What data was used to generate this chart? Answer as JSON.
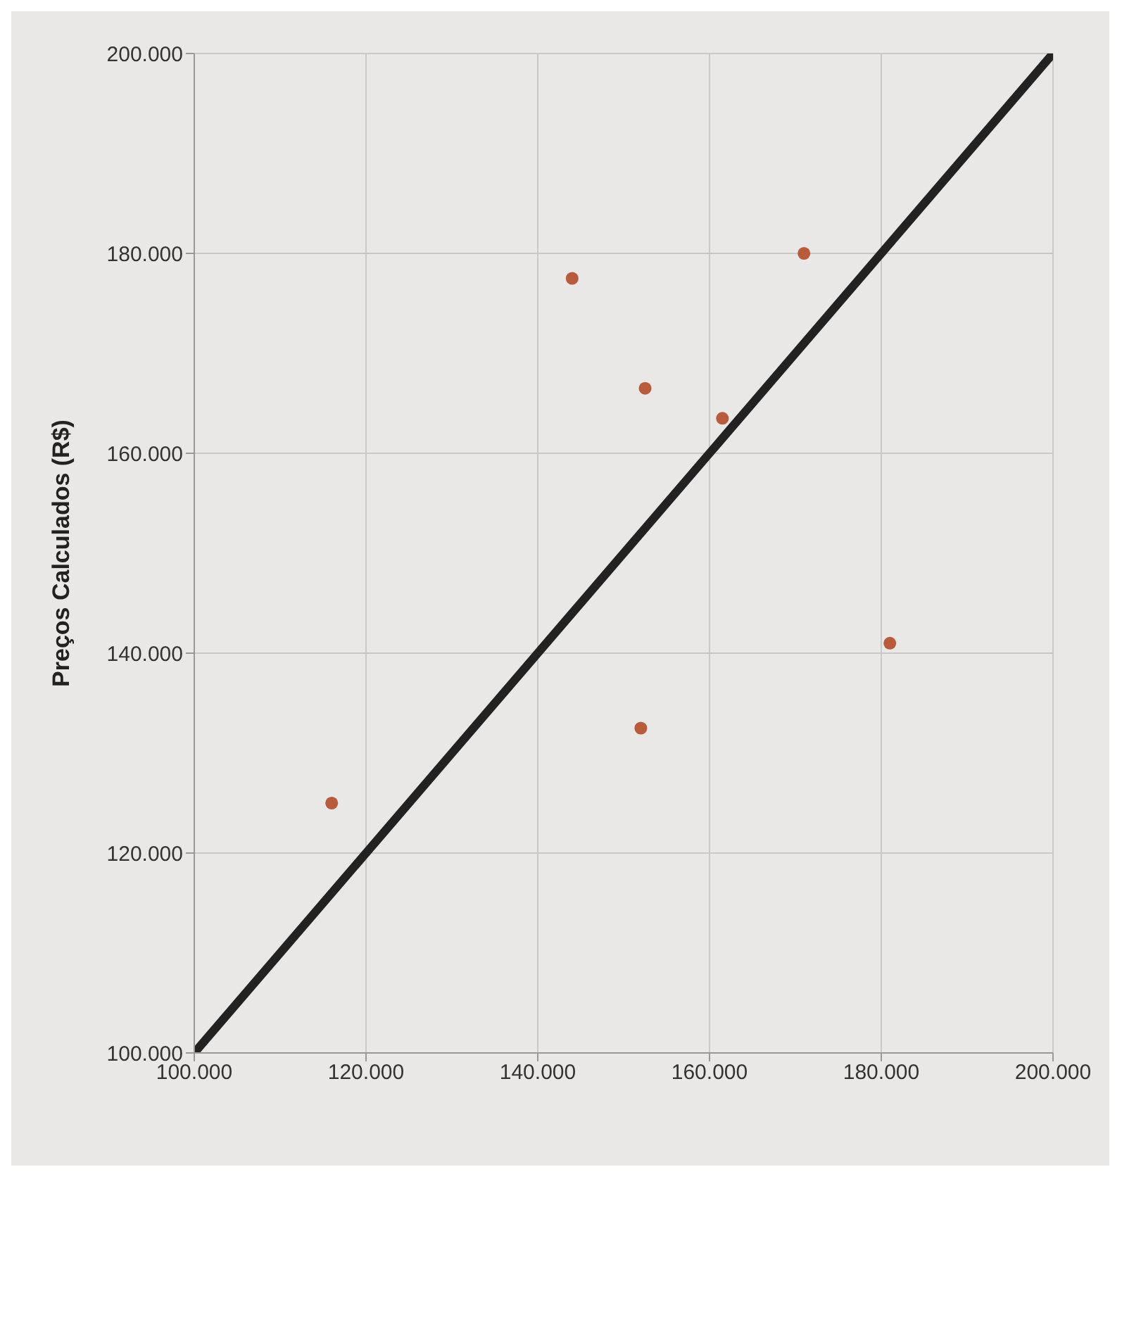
{
  "chart_data": {
    "type": "scatter",
    "ylabel": "Preços Calculados (R$)",
    "xlim": [
      100000,
      200000
    ],
    "ylim": [
      100000,
      200000
    ],
    "xticks": [
      {
        "value": 100000,
        "label": "100.000"
      },
      {
        "value": 120000,
        "label": "120.000"
      },
      {
        "value": 140000,
        "label": "140.000"
      },
      {
        "value": 160000,
        "label": "160.000"
      },
      {
        "value": 180000,
        "label": "180.000"
      },
      {
        "value": 200000,
        "label": "200.000"
      }
    ],
    "yticks": [
      {
        "value": 100000,
        "label": "100.000"
      },
      {
        "value": 120000,
        "label": "120.000"
      },
      {
        "value": 140000,
        "label": "140.000"
      },
      {
        "value": 160000,
        "label": "160.000"
      },
      {
        "value": 180000,
        "label": "180.000"
      },
      {
        "value": 200000,
        "label": "200.000"
      }
    ],
    "grid": true,
    "series": [
      {
        "marker": "circle",
        "color": "#b85a3c",
        "x": [
          171000,
          181000,
          161500,
          144000,
          152500,
          152000,
          116000
        ],
        "values": [
          180000,
          141000,
          163500,
          177500,
          166500,
          132500,
          125000
        ]
      },
      {
        "type": "line",
        "color": "#222222",
        "line_style": "solid",
        "x": [
          100000,
          200000
        ],
        "values": [
          100000,
          200000
        ]
      }
    ]
  }
}
